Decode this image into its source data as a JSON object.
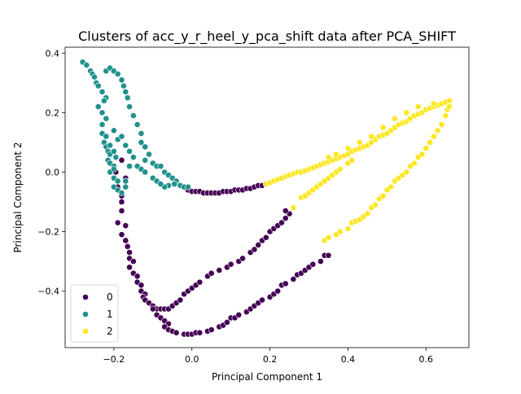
{
  "chart_data": {
    "type": "scatter",
    "title": "Clusters of acc_y_r_heel_y_pca_shift data after PCA_SHIFT",
    "xlabel": "Principal Component 1",
    "ylabel": "Principal Component 2",
    "xlim": [
      -0.325,
      0.71
    ],
    "ylim": [
      -0.59,
      0.42
    ],
    "xticks": [
      -0.2,
      0.0,
      0.2,
      0.4,
      0.6
    ],
    "yticks": [
      -0.4,
      -0.2,
      0.0,
      0.2,
      0.4
    ],
    "xtick_labels": [
      "−0.2",
      "0.0",
      "0.2",
      "0.4",
      "0.6"
    ],
    "ytick_labels": [
      "−0.4",
      "−0.2",
      "0.0",
      "0.2",
      "0.4"
    ],
    "grid": false,
    "legend_position": "lower-left",
    "series": [
      {
        "name": "0",
        "color": "#440154",
        "points": [
          [
            -0.18,
            0.04
          ],
          [
            -0.195,
            0.0
          ],
          [
            -0.17,
            -0.02
          ],
          [
            -0.19,
            -0.05
          ],
          [
            -0.18,
            -0.08
          ],
          [
            -0.18,
            -0.1
          ],
          [
            -0.18,
            -0.13
          ],
          [
            -0.19,
            -0.17
          ],
          [
            -0.17,
            -0.18
          ],
          [
            -0.18,
            -0.21
          ],
          [
            -0.17,
            -0.23
          ],
          [
            -0.165,
            -0.25
          ],
          [
            -0.16,
            -0.27
          ],
          [
            -0.16,
            -0.29
          ],
          [
            -0.15,
            -0.3
          ],
          [
            -0.16,
            -0.32
          ],
          [
            -0.15,
            -0.34
          ],
          [
            -0.14,
            -0.35
          ],
          [
            -0.14,
            -0.37
          ],
          [
            -0.13,
            -0.38
          ],
          [
            -0.13,
            -0.4
          ],
          [
            -0.12,
            -0.41
          ],
          [
            -0.125,
            -0.42
          ],
          [
            -0.12,
            -0.43
          ],
          [
            -0.11,
            -0.44
          ],
          [
            -0.1,
            -0.45
          ],
          [
            -0.09,
            -0.46
          ],
          [
            -0.08,
            -0.46
          ],
          [
            -0.07,
            -0.46
          ],
          [
            -0.06,
            -0.46
          ],
          [
            -0.05,
            -0.45
          ],
          [
            -0.04,
            -0.44
          ],
          [
            -0.03,
            -0.43
          ],
          [
            -0.02,
            -0.41
          ],
          [
            -0.01,
            -0.4
          ],
          [
            0.0,
            -0.39
          ],
          [
            0.01,
            -0.38
          ],
          [
            0.02,
            -0.37
          ],
          [
            0.04,
            -0.35
          ],
          [
            0.05,
            -0.34
          ],
          [
            0.07,
            -0.33
          ],
          [
            0.09,
            -0.32
          ],
          [
            0.1,
            -0.31
          ],
          [
            0.12,
            -0.3
          ],
          [
            0.13,
            -0.29
          ],
          [
            0.15,
            -0.27
          ],
          [
            0.16,
            -0.26
          ],
          [
            0.17,
            -0.245
          ],
          [
            0.18,
            -0.23
          ],
          [
            0.19,
            -0.22
          ],
          [
            0.2,
            -0.2
          ],
          [
            0.21,
            -0.19
          ],
          [
            0.22,
            -0.18
          ],
          [
            0.23,
            -0.17
          ],
          [
            0.24,
            -0.155
          ],
          [
            0.25,
            -0.14
          ],
          [
            0.24,
            -0.13
          ],
          [
            -0.1,
            -0.46
          ],
          [
            -0.09,
            -0.48
          ],
          [
            -0.08,
            -0.49
          ],
          [
            -0.07,
            -0.5
          ],
          [
            -0.06,
            -0.51
          ],
          [
            -0.07,
            -0.52
          ],
          [
            -0.06,
            -0.53
          ],
          [
            -0.05,
            -0.535
          ],
          [
            -0.04,
            -0.54
          ],
          [
            -0.02,
            -0.545
          ],
          [
            -0.01,
            -0.545
          ],
          [
            0.0,
            -0.545
          ],
          [
            0.01,
            -0.54
          ],
          [
            0.02,
            -0.54
          ],
          [
            0.04,
            -0.535
          ],
          [
            0.05,
            -0.53
          ],
          [
            0.07,
            -0.52
          ],
          [
            0.08,
            -0.515
          ],
          [
            0.09,
            -0.505
          ],
          [
            0.1,
            -0.49
          ],
          [
            0.11,
            -0.49
          ],
          [
            0.12,
            -0.48
          ],
          [
            0.14,
            -0.47
          ],
          [
            0.15,
            -0.46
          ],
          [
            0.16,
            -0.45
          ],
          [
            0.17,
            -0.44
          ],
          [
            0.18,
            -0.43
          ],
          [
            0.2,
            -0.42
          ],
          [
            0.21,
            -0.41
          ],
          [
            0.22,
            -0.4
          ],
          [
            0.23,
            -0.38
          ],
          [
            0.24,
            -0.375
          ],
          [
            0.26,
            -0.36
          ],
          [
            0.27,
            -0.345
          ],
          [
            0.28,
            -0.34
          ],
          [
            0.29,
            -0.33
          ],
          [
            0.3,
            -0.32
          ],
          [
            0.31,
            -0.31
          ],
          [
            0.33,
            -0.3
          ],
          [
            0.34,
            -0.28
          ],
          [
            0.35,
            -0.28
          ],
          [
            -0.02,
            -0.05
          ],
          [
            -0.01,
            -0.06
          ],
          [
            0.0,
            -0.065
          ],
          [
            0.01,
            -0.065
          ],
          [
            0.02,
            -0.065
          ],
          [
            0.03,
            -0.07
          ],
          [
            0.04,
            -0.07
          ],
          [
            0.05,
            -0.07
          ],
          [
            0.06,
            -0.07
          ],
          [
            0.07,
            -0.07
          ],
          [
            0.08,
            -0.065
          ],
          [
            0.09,
            -0.065
          ],
          [
            0.1,
            -0.065
          ],
          [
            0.11,
            -0.06
          ],
          [
            0.12,
            -0.06
          ],
          [
            0.13,
            -0.06
          ],
          [
            0.14,
            -0.055
          ],
          [
            0.15,
            -0.055
          ],
          [
            0.16,
            -0.05
          ],
          [
            0.17,
            -0.045
          ],
          [
            0.18,
            -0.045
          ],
          [
            0.19,
            -0.04
          ]
        ]
      },
      {
        "name": "1",
        "color": "#21918c",
        "points": [
          [
            -0.28,
            0.37
          ],
          [
            -0.27,
            0.36
          ],
          [
            -0.26,
            0.34
          ],
          [
            -0.255,
            0.33
          ],
          [
            -0.25,
            0.32
          ],
          [
            -0.245,
            0.3
          ],
          [
            -0.24,
            0.29
          ],
          [
            -0.23,
            0.27
          ],
          [
            -0.22,
            0.25
          ],
          [
            -0.225,
            0.24
          ],
          [
            -0.24,
            0.22
          ],
          [
            -0.23,
            0.2
          ],
          [
            -0.22,
            0.18
          ],
          [
            -0.23,
            0.16
          ],
          [
            -0.23,
            0.13
          ],
          [
            -0.22,
            0.12
          ],
          [
            -0.225,
            0.1
          ],
          [
            -0.22,
            0.085
          ],
          [
            -0.215,
            0.07
          ],
          [
            -0.21,
            0.06
          ],
          [
            -0.215,
            0.04
          ],
          [
            -0.21,
            0.03
          ],
          [
            -0.2,
            0.02
          ],
          [
            -0.21,
            0.0
          ],
          [
            -0.2,
            -0.02
          ],
          [
            -0.19,
            -0.03
          ],
          [
            -0.2,
            -0.05
          ],
          [
            -0.19,
            -0.06
          ],
          [
            -0.18,
            -0.07
          ],
          [
            -0.17,
            -0.05
          ],
          [
            -0.2,
            0.01
          ],
          [
            -0.195,
            0.05
          ],
          [
            -0.21,
            0.09
          ],
          [
            -0.2,
            0.14
          ],
          [
            -0.19,
            0.11
          ],
          [
            -0.2,
            0.07
          ],
          [
            -0.22,
            0.34
          ],
          [
            -0.21,
            0.35
          ],
          [
            -0.2,
            0.34
          ],
          [
            -0.19,
            0.33
          ],
          [
            -0.18,
            0.31
          ],
          [
            -0.175,
            0.29
          ],
          [
            -0.17,
            0.27
          ],
          [
            -0.165,
            0.25
          ],
          [
            -0.16,
            0.22
          ],
          [
            -0.15,
            0.19
          ],
          [
            -0.14,
            0.16
          ],
          [
            -0.13,
            0.13
          ],
          [
            -0.13,
            0.1
          ],
          [
            -0.12,
            0.085
          ],
          [
            -0.11,
            0.06
          ],
          [
            -0.12,
            0.04
          ],
          [
            -0.1,
            0.03
          ],
          [
            -0.09,
            0.02
          ],
          [
            -0.08,
            0.02
          ],
          [
            -0.07,
            0.0
          ],
          [
            -0.06,
            -0.01
          ],
          [
            -0.05,
            -0.02
          ],
          [
            -0.04,
            -0.03
          ],
          [
            -0.06,
            -0.045
          ],
          [
            -0.03,
            -0.045
          ],
          [
            -0.02,
            -0.05
          ],
          [
            -0.01,
            -0.05
          ],
          [
            -0.045,
            -0.04
          ],
          [
            -0.07,
            -0.05
          ],
          [
            -0.18,
            0.12
          ],
          [
            -0.17,
            0.09
          ],
          [
            -0.16,
            0.07
          ],
          [
            -0.15,
            0.05
          ],
          [
            -0.14,
            0.02
          ],
          [
            -0.13,
            0.01
          ],
          [
            -0.12,
            0.0
          ],
          [
            -0.1,
            -0.02
          ],
          [
            -0.09,
            -0.03
          ],
          [
            -0.08,
            -0.04
          ],
          [
            -0.16,
            0.02
          ],
          [
            -0.17,
            -0.03
          ]
        ]
      },
      {
        "name": "2",
        "color": "#fde725",
        "points": [
          [
            0.19,
            -0.04
          ],
          [
            0.2,
            -0.035
          ],
          [
            0.21,
            -0.03
          ],
          [
            0.22,
            -0.025
          ],
          [
            0.23,
            -0.02
          ],
          [
            0.24,
            -0.015
          ],
          [
            0.25,
            -0.01
          ],
          [
            0.26,
            -0.005
          ],
          [
            0.27,
            0.0
          ],
          [
            0.28,
            0.0
          ],
          [
            0.29,
            0.005
          ],
          [
            0.3,
            0.01
          ],
          [
            0.31,
            0.015
          ],
          [
            0.32,
            0.02
          ],
          [
            0.33,
            0.025
          ],
          [
            0.34,
            0.03
          ],
          [
            0.35,
            0.035
          ],
          [
            0.36,
            0.04
          ],
          [
            0.37,
            0.045
          ],
          [
            0.38,
            0.05
          ],
          [
            0.39,
            0.055
          ],
          [
            0.4,
            0.06
          ],
          [
            0.41,
            0.07
          ],
          [
            0.42,
            0.075
          ],
          [
            0.43,
            0.08
          ],
          [
            0.44,
            0.085
          ],
          [
            0.45,
            0.09
          ],
          [
            0.46,
            0.1
          ],
          [
            0.47,
            0.11
          ],
          [
            0.48,
            0.12
          ],
          [
            0.49,
            0.125
          ],
          [
            0.5,
            0.13
          ],
          [
            0.51,
            0.14
          ],
          [
            0.52,
            0.15
          ],
          [
            0.53,
            0.16
          ],
          [
            0.54,
            0.165
          ],
          [
            0.55,
            0.17
          ],
          [
            0.56,
            0.18
          ],
          [
            0.57,
            0.19
          ],
          [
            0.58,
            0.195
          ],
          [
            0.59,
            0.2
          ],
          [
            0.6,
            0.21
          ],
          [
            0.61,
            0.215
          ],
          [
            0.62,
            0.22
          ],
          [
            0.63,
            0.225
          ],
          [
            0.64,
            0.23
          ],
          [
            0.65,
            0.235
          ],
          [
            0.66,
            0.24
          ],
          [
            0.35,
            0.05
          ],
          [
            0.37,
            0.06
          ],
          [
            0.4,
            0.08
          ],
          [
            0.43,
            0.1
          ],
          [
            0.46,
            0.12
          ],
          [
            0.49,
            0.15
          ],
          [
            0.52,
            0.18
          ],
          [
            0.55,
            0.2
          ],
          [
            0.58,
            0.22
          ],
          [
            0.62,
            0.23
          ],
          [
            0.26,
            -0.12
          ],
          [
            0.28,
            -0.085
          ],
          [
            0.29,
            -0.08
          ],
          [
            0.3,
            -0.07
          ],
          [
            0.31,
            -0.06
          ],
          [
            0.32,
            -0.05
          ],
          [
            0.33,
            -0.04
          ],
          [
            0.34,
            -0.03
          ],
          [
            0.35,
            -0.02
          ],
          [
            0.36,
            -0.01
          ],
          [
            0.37,
            0.0
          ],
          [
            0.38,
            0.01
          ],
          [
            0.4,
            0.03
          ],
          [
            0.41,
            0.04
          ],
          [
            0.34,
            -0.23
          ],
          [
            0.35,
            -0.22
          ],
          [
            0.37,
            -0.21
          ],
          [
            0.38,
            -0.2
          ],
          [
            0.4,
            -0.19
          ],
          [
            0.41,
            -0.17
          ],
          [
            0.42,
            -0.165
          ],
          [
            0.43,
            -0.16
          ],
          [
            0.44,
            -0.15
          ],
          [
            0.45,
            -0.14
          ],
          [
            0.46,
            -0.12
          ],
          [
            0.47,
            -0.11
          ],
          [
            0.48,
            -0.09
          ],
          [
            0.49,
            -0.08
          ],
          [
            0.5,
            -0.06
          ],
          [
            0.51,
            -0.05
          ],
          [
            0.52,
            -0.03
          ],
          [
            0.53,
            -0.02
          ],
          [
            0.54,
            -0.01
          ],
          [
            0.55,
            0.0
          ],
          [
            0.56,
            0.02
          ],
          [
            0.57,
            0.03
          ],
          [
            0.58,
            0.05
          ],
          [
            0.59,
            0.06
          ],
          [
            0.6,
            0.08
          ],
          [
            0.61,
            0.1
          ],
          [
            0.62,
            0.12
          ],
          [
            0.63,
            0.14
          ],
          [
            0.64,
            0.16
          ],
          [
            0.65,
            0.19
          ],
          [
            0.655,
            0.21
          ],
          [
            0.66,
            0.22
          ]
        ]
      }
    ]
  }
}
